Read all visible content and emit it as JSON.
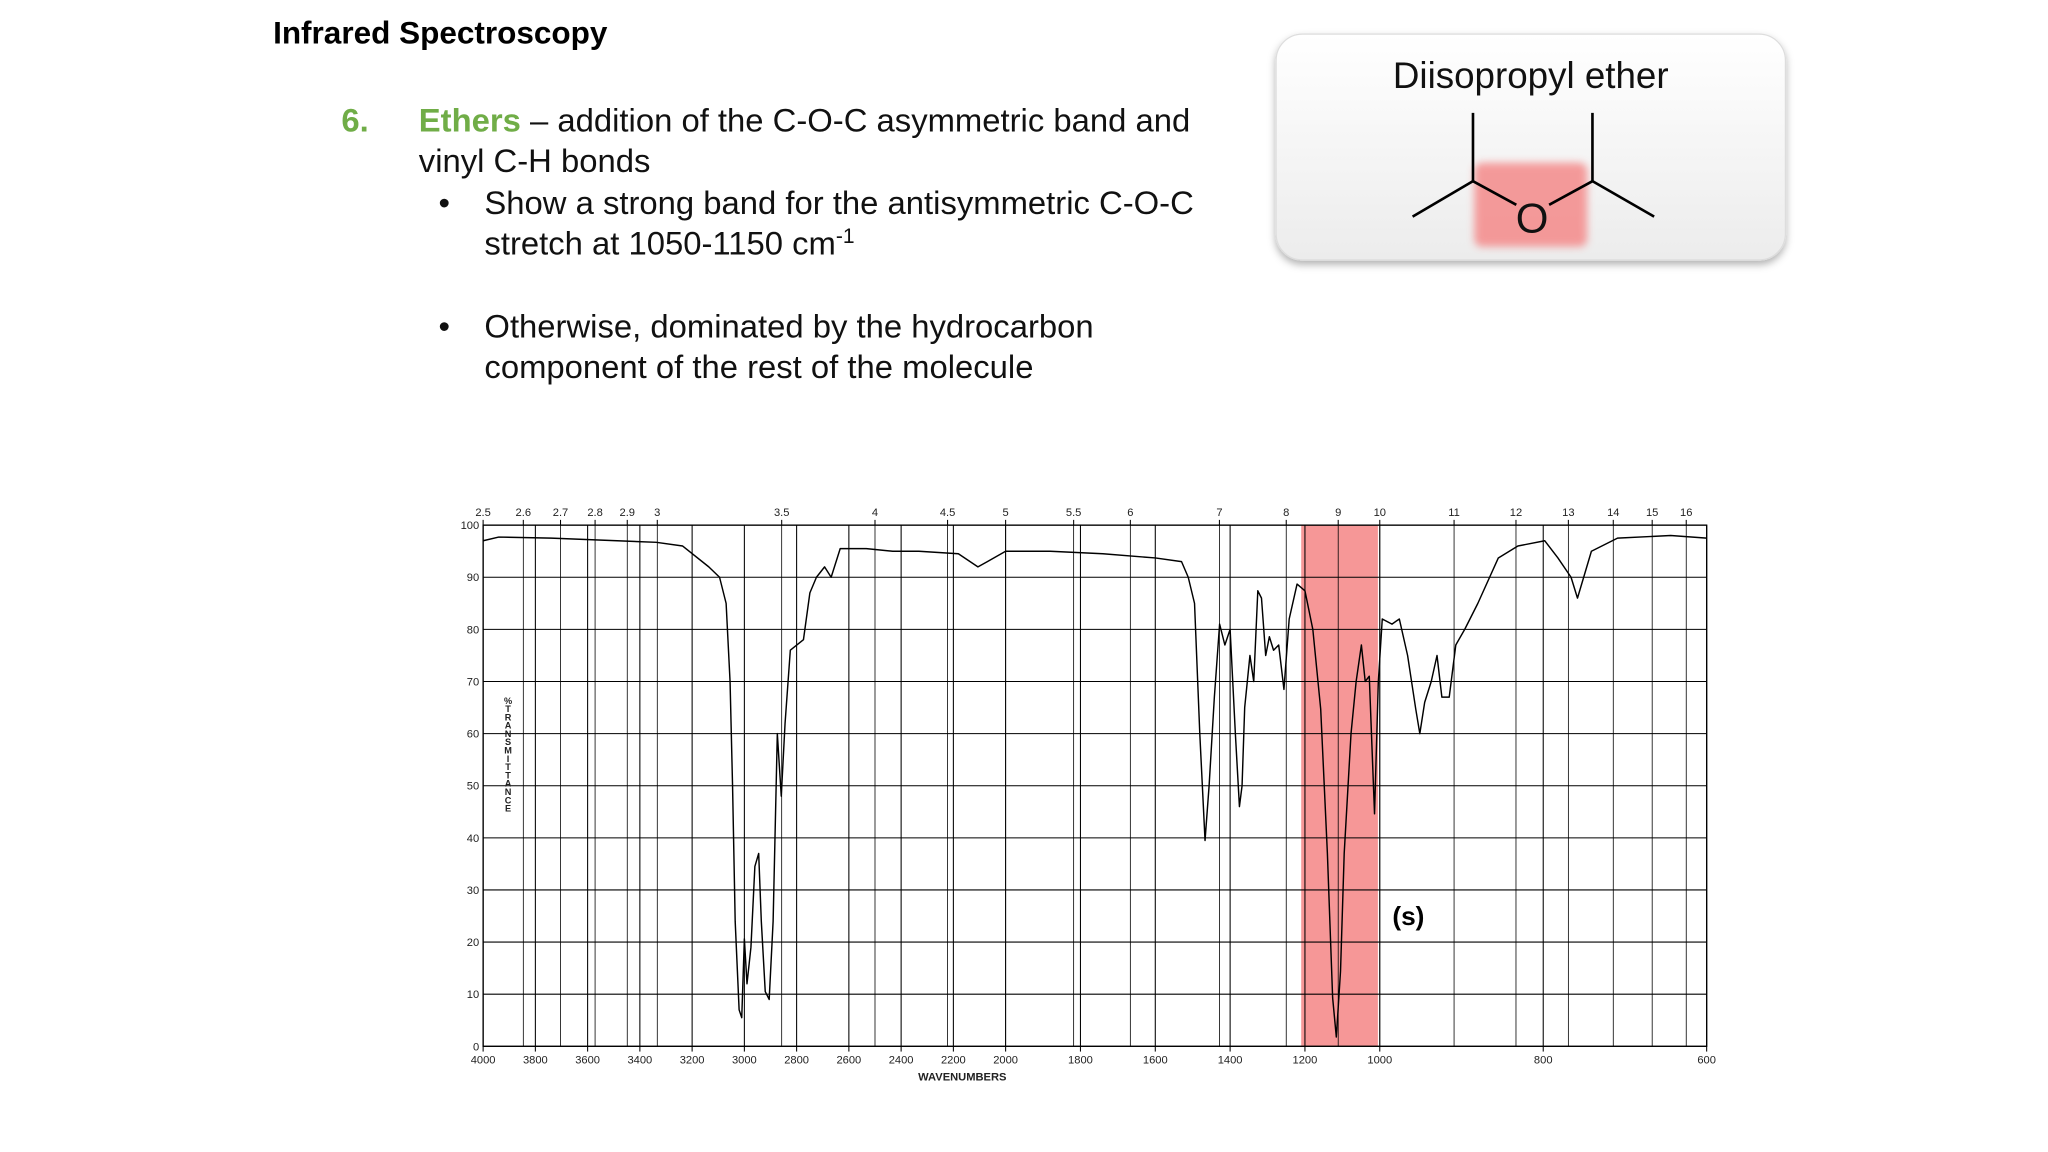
{
  "slide": {
    "title": "Infrared Spectroscopy",
    "item_number": "6.",
    "item_keyword": "Ethers",
    "item_text": " – addition of the C-O-C asymmetric band and",
    "item_text_2": "vinyl C-H bonds",
    "bullets": [
      {
        "line1": "Show a strong band for the antisymmetric C-O-C",
        "line2": "stretch at 1050-1150 cm",
        "superscript": "-1"
      },
      {
        "line1": "Otherwise, dominated by the hydrocarbon",
        "line2": "component of the rest of the molecule"
      }
    ],
    "card": {
      "title": "Diisopropyl ether",
      "atom": "O"
    }
  },
  "chart_data": {
    "type": "line",
    "xlabel": "WAVENUMBERS",
    "ylabel": "%TRANSMITTANCE",
    "color": "#000000",
    "highlight_color": "#f26b6b",
    "grid": true,
    "x": [
      4000,
      3940,
      3739,
      3337,
      3236,
      3136,
      3095,
      3070,
      3055,
      3045,
      3035,
      3020,
      3010,
      3000,
      2990,
      2975,
      2960,
      2945,
      2935,
      2920,
      2905,
      2890,
      2874,
      2859,
      2844,
      2824,
      2799,
      2774,
      2749,
      2724,
      2693,
      2668,
      2633,
      2533,
      2432,
      2332,
      2181,
      2106,
      2070,
      2000,
      1881,
      1740,
      1600,
      1530,
      1512,
      1495,
      1481,
      1467,
      1456,
      1442,
      1428,
      1414,
      1400,
      1386,
      1375,
      1368,
      1361,
      1347,
      1337,
      1326,
      1316,
      1305,
      1295,
      1284,
      1270,
      1256,
      1242,
      1221,
      1200,
      1179,
      1158,
      1140,
      1126,
      1116,
      1105,
      1095,
      1077,
      1063,
      1049,
      1039,
      1028,
      1014,
      1004,
      997,
      985,
      976,
      966,
      956,
      951,
      945,
      937,
      930,
      924,
      915,
      907,
      896,
      880,
      855,
      831,
      798,
      782,
      766,
      758,
      741,
      709,
      644,
      600
    ],
    "values": [
      97,
      97.7,
      97.5,
      96.7,
      96,
      92,
      90,
      85,
      70,
      50,
      24,
      7,
      5.5,
      20.6,
      12,
      19,
      34.5,
      37,
      24,
      10.5,
      9,
      24,
      60,
      48,
      62,
      76,
      77,
      78,
      87,
      90,
      92,
      90,
      95.5,
      95.5,
      95,
      95,
      94.5,
      92,
      93,
      95,
      95,
      94.5,
      93.7,
      93,
      90,
      85,
      60,
      39.5,
      50,
      67,
      81,
      77,
      80,
      60,
      46,
      50,
      65,
      75,
      70,
      87.4,
      86,
      75,
      78.6,
      76,
      77,
      68.5,
      82,
      88.7,
      87.4,
      80,
      64.7,
      37,
      9.3,
      1.8,
      14.4,
      37,
      60,
      70,
      77,
      70,
      71,
      44.6,
      70,
      82,
      81,
      82,
      75,
      64.7,
      60,
      66,
      70,
      75,
      67,
      67,
      77,
      80,
      85,
      93.7,
      96,
      97,
      93.7,
      90,
      86,
      95,
      97.5,
      98,
      97.5
    ],
    "highlight_x": [
      1210,
      1005
    ],
    "annotations": [
      {
        "text": "(s)",
        "x": 965,
        "y": 25
      }
    ],
    "xlim": [
      4000,
      600
    ],
    "xticks": [
      4000,
      3800,
      3600,
      3400,
      3200,
      3000,
      2800,
      2600,
      2400,
      2200,
      2000,
      1800,
      1600,
      1400,
      1200,
      1000,
      800,
      600
    ],
    "x2ticks": [
      2.5,
      2.6,
      2.7,
      2.8,
      2.9,
      3,
      3.5,
      4,
      4.5,
      5,
      5.5,
      6,
      7,
      8,
      9,
      10,
      11,
      12,
      13,
      14,
      15,
      16
    ],
    "ylim": [
      0,
      100
    ],
    "yticks": [
      0,
      10,
      20,
      30,
      40,
      50,
      60,
      70,
      80,
      90,
      100
    ]
  }
}
